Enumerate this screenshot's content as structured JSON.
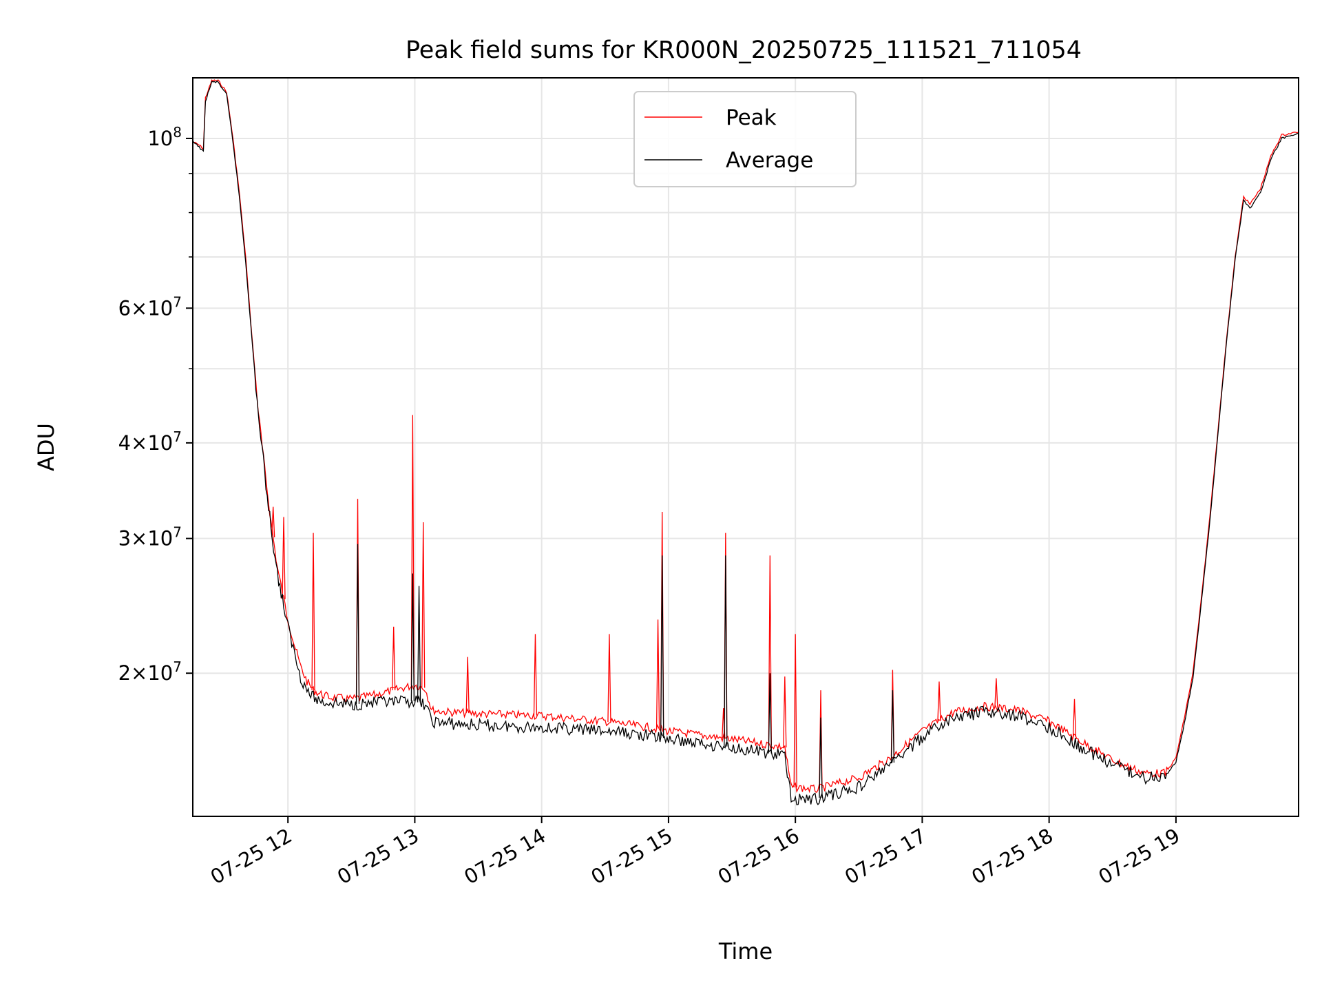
{
  "chart_data": {
    "type": "line",
    "title": "Peak field sums for KR000N_20250725_111521_711054",
    "xlabel": "Time",
    "ylabel": "ADU",
    "x_axis_kind": "datetime",
    "xlim": [
      "2025-07-25 11:15",
      "2025-07-25 19:58"
    ],
    "ylim": [
      13000000,
      120000000
    ],
    "y_scale": "log",
    "grid": true,
    "legend_position": "upper center",
    "x_ticks": [
      {
        "value": "2025-07-25 12:00",
        "label": "07-25 12"
      },
      {
        "value": "2025-07-25 13:00",
        "label": "07-25 13"
      },
      {
        "value": "2025-07-25 14:00",
        "label": "07-25 14"
      },
      {
        "value": "2025-07-25 15:00",
        "label": "07-25 15"
      },
      {
        "value": "2025-07-25 16:00",
        "label": "07-25 16"
      },
      {
        "value": "2025-07-25 17:00",
        "label": "07-25 17"
      },
      {
        "value": "2025-07-25 18:00",
        "label": "07-25 18"
      },
      {
        "value": "2025-07-25 19:00",
        "label": "07-25 19"
      }
    ],
    "y_ticks": [
      {
        "value": 20000000,
        "base": "2",
        "exponent": "7"
      },
      {
        "value": 30000000,
        "base": "3",
        "exponent": "7"
      },
      {
        "value": 40000000,
        "base": "4",
        "exponent": "7"
      },
      {
        "value": 60000000,
        "base": "6",
        "exponent": "7"
      },
      {
        "value": 100000000,
        "base": "10",
        "exponent": "8"
      }
    ],
    "y_minor_ticks": [
      50000000,
      70000000,
      80000000,
      90000000
    ],
    "series": [
      {
        "name": "Peak",
        "color": "#ff0000",
        "points": [
          [
            "2025-07-25 11:15",
            99000000
          ],
          [
            "2025-07-25 11:18",
            98000000
          ],
          [
            "2025-07-25 11:20",
            97000000
          ],
          [
            "2025-07-25 11:21",
            113000000
          ],
          [
            "2025-07-25 11:24",
            119000000
          ],
          [
            "2025-07-25 11:27",
            119000000
          ],
          [
            "2025-07-25 11:31",
            115000000
          ],
          [
            "2025-07-25 11:34",
            100000000
          ],
          [
            "2025-07-25 11:37",
            85000000
          ],
          [
            "2025-07-25 11:40",
            70000000
          ],
          [
            "2025-07-25 11:43",
            55000000
          ],
          [
            "2025-07-25 11:46",
            44000000
          ],
          [
            "2025-07-25 11:49",
            37000000
          ],
          [
            "2025-07-25 11:52",
            31500000
          ],
          [
            "2025-07-25 11:55",
            27500000
          ],
          [
            "2025-07-25 11:58",
            25000000
          ],
          [
            "2025-07-25 12:00",
            23500000
          ],
          [
            "2025-07-25 12:03",
            21800000
          ],
          [
            "2025-07-25 12:06",
            20400000
          ],
          [
            "2025-07-25 12:09",
            19500000
          ],
          [
            "2025-07-25 12:12",
            19000000
          ],
          [
            "2025-07-25 12:15",
            18800000
          ],
          [
            "2025-07-25 12:20",
            18600000
          ],
          [
            "2025-07-25 12:30",
            18500000
          ],
          [
            "2025-07-25 12:40",
            18700000
          ],
          [
            "2025-07-25 12:50",
            19000000
          ],
          [
            "2025-07-25 13:00",
            19300000
          ],
          [
            "2025-07-25 13:05",
            19100000
          ],
          [
            "2025-07-25 13:08",
            17900000
          ],
          [
            "2025-07-25 13:15",
            17800000
          ],
          [
            "2025-07-25 13:30",
            17700000
          ],
          [
            "2025-07-25 14:00",
            17600000
          ],
          [
            "2025-07-25 14:30",
            17300000
          ],
          [
            "2025-07-25 14:50",
            17000000
          ],
          [
            "2025-07-25 15:00",
            16800000
          ],
          [
            "2025-07-25 15:30",
            16400000
          ],
          [
            "2025-07-25 15:55",
            16000000
          ],
          [
            "2025-07-25 15:58",
            14200000
          ],
          [
            "2025-07-25 16:10",
            14100000
          ],
          [
            "2025-07-25 16:30",
            14600000
          ],
          [
            "2025-07-25 16:45",
            15500000
          ],
          [
            "2025-07-25 17:00",
            16800000
          ],
          [
            "2025-07-25 17:15",
            17800000
          ],
          [
            "2025-07-25 17:30",
            18100000
          ],
          [
            "2025-07-25 17:45",
            17900000
          ],
          [
            "2025-07-25 18:00",
            17300000
          ],
          [
            "2025-07-25 18:15",
            16300000
          ],
          [
            "2025-07-25 18:30",
            15400000
          ],
          [
            "2025-07-25 18:45",
            14800000
          ],
          [
            "2025-07-25 18:55",
            14800000
          ],
          [
            "2025-07-25 19:00",
            15500000
          ],
          [
            "2025-07-25 19:04",
            17500000
          ],
          [
            "2025-07-25 19:08",
            20000000
          ],
          [
            "2025-07-25 19:12",
            25000000
          ],
          [
            "2025-07-25 19:16",
            32000000
          ],
          [
            "2025-07-25 19:20",
            42000000
          ],
          [
            "2025-07-25 19:24",
            55000000
          ],
          [
            "2025-07-25 19:28",
            70000000
          ],
          [
            "2025-07-25 19:32",
            84000000
          ],
          [
            "2025-07-25 19:35",
            82000000
          ],
          [
            "2025-07-25 19:40",
            86000000
          ],
          [
            "2025-07-25 19:45",
            95000000
          ],
          [
            "2025-07-25 19:50",
            101000000
          ],
          [
            "2025-07-25 19:58",
            102000000
          ]
        ],
        "spikes": [
          [
            "2025-07-25 11:53",
            33000000
          ],
          [
            "2025-07-25 11:58",
            32000000
          ],
          [
            "2025-07-25 12:12",
            30500000
          ],
          [
            "2025-07-25 12:33",
            33800000
          ],
          [
            "2025-07-25 12:50",
            23000000
          ],
          [
            "2025-07-25 12:59",
            43500000
          ],
          [
            "2025-07-25 13:04",
            31500000
          ],
          [
            "2025-07-25 13:25",
            21000000
          ],
          [
            "2025-07-25 13:57",
            22500000
          ],
          [
            "2025-07-25 14:32",
            22500000
          ],
          [
            "2025-07-25 14:55",
            23500000
          ],
          [
            "2025-07-25 14:57",
            32500000
          ],
          [
            "2025-07-25 15:26",
            18000000
          ],
          [
            "2025-07-25 15:27",
            30500000
          ],
          [
            "2025-07-25 15:48",
            28500000
          ],
          [
            "2025-07-25 15:55",
            19800000
          ],
          [
            "2025-07-25 16:00",
            22500000
          ],
          [
            "2025-07-25 16:12",
            19000000
          ],
          [
            "2025-07-25 16:46",
            20200000
          ],
          [
            "2025-07-25 17:08",
            19500000
          ],
          [
            "2025-07-25 17:35",
            19700000
          ],
          [
            "2025-07-25 18:12",
            18500000
          ]
        ]
      },
      {
        "name": "Average",
        "color": "#000000",
        "points": [
          [
            "2025-07-25 11:15",
            99000000
          ],
          [
            "2025-07-25 11:18",
            97500000
          ],
          [
            "2025-07-25 11:20",
            96000000
          ],
          [
            "2025-07-25 11:21",
            112000000
          ],
          [
            "2025-07-25 11:24",
            118500000
          ],
          [
            "2025-07-25 11:27",
            118500000
          ],
          [
            "2025-07-25 11:31",
            114000000
          ],
          [
            "2025-07-25 11:34",
            99000000
          ],
          [
            "2025-07-25 11:37",
            84000000
          ],
          [
            "2025-07-25 11:40",
            69000000
          ],
          [
            "2025-07-25 11:43",
            54500000
          ],
          [
            "2025-07-25 11:46",
            43500000
          ],
          [
            "2025-07-25 11:49",
            36500000
          ],
          [
            "2025-07-25 11:52",
            31000000
          ],
          [
            "2025-07-25 11:55",
            27000000
          ],
          [
            "2025-07-25 11:58",
            24500000
          ],
          [
            "2025-07-25 12:00",
            23000000
          ],
          [
            "2025-07-25 12:03",
            21300000
          ],
          [
            "2025-07-25 12:06",
            19800000
          ],
          [
            "2025-07-25 12:09",
            19000000
          ],
          [
            "2025-07-25 12:12",
            18600000
          ],
          [
            "2025-07-25 12:15",
            18400000
          ],
          [
            "2025-07-25 12:20",
            18300000
          ],
          [
            "2025-07-25 12:30",
            18200000
          ],
          [
            "2025-07-25 12:40",
            18300000
          ],
          [
            "2025-07-25 12:50",
            18300000
          ],
          [
            "2025-07-25 13:00",
            18400000
          ],
          [
            "2025-07-25 13:05",
            18200000
          ],
          [
            "2025-07-25 13:08",
            17300000
          ],
          [
            "2025-07-25 13:15",
            17200000
          ],
          [
            "2025-07-25 13:30",
            17100000
          ],
          [
            "2025-07-25 14:00",
            17000000
          ],
          [
            "2025-07-25 14:30",
            16800000
          ],
          [
            "2025-07-25 14:50",
            16600000
          ],
          [
            "2025-07-25 15:00",
            16400000
          ],
          [
            "2025-07-25 15:30",
            16000000
          ],
          [
            "2025-07-25 15:55",
            15600000
          ],
          [
            "2025-07-25 15:58",
            13700000
          ],
          [
            "2025-07-25 16:10",
            13700000
          ],
          [
            "2025-07-25 16:30",
            14200000
          ],
          [
            "2025-07-25 16:45",
            15200000
          ],
          [
            "2025-07-25 17:00",
            16500000
          ],
          [
            "2025-07-25 17:15",
            17500000
          ],
          [
            "2025-07-25 17:30",
            17800000
          ],
          [
            "2025-07-25 17:45",
            17600000
          ],
          [
            "2025-07-25 18:00",
            17000000
          ],
          [
            "2025-07-25 18:15",
            16000000
          ],
          [
            "2025-07-25 18:30",
            15200000
          ],
          [
            "2025-07-25 18:45",
            14600000
          ],
          [
            "2025-07-25 18:55",
            14700000
          ],
          [
            "2025-07-25 19:00",
            15300000
          ],
          [
            "2025-07-25 19:04",
            17200000
          ],
          [
            "2025-07-25 19:08",
            19700000
          ],
          [
            "2025-07-25 19:12",
            24700000
          ],
          [
            "2025-07-25 19:16",
            31500000
          ],
          [
            "2025-07-25 19:20",
            41500000
          ],
          [
            "2025-07-25 19:24",
            54500000
          ],
          [
            "2025-07-25 19:28",
            69500000
          ],
          [
            "2025-07-25 19:32",
            83000000
          ],
          [
            "2025-07-25 19:35",
            81000000
          ],
          [
            "2025-07-25 19:40",
            85000000
          ],
          [
            "2025-07-25 19:45",
            94000000
          ],
          [
            "2025-07-25 19:50",
            100000000
          ],
          [
            "2025-07-25 19:58",
            101500000
          ]
        ],
        "spikes": [
          [
            "2025-07-25 12:33",
            29500000
          ],
          [
            "2025-07-25 12:59",
            27000000
          ],
          [
            "2025-07-25 13:02",
            26000000
          ],
          [
            "2025-07-25 14:57",
            28500000
          ],
          [
            "2025-07-25 15:27",
            28500000
          ],
          [
            "2025-07-25 15:48",
            20000000
          ],
          [
            "2025-07-25 16:12",
            17500000
          ],
          [
            "2025-07-25 16:46",
            19000000
          ]
        ]
      }
    ]
  }
}
